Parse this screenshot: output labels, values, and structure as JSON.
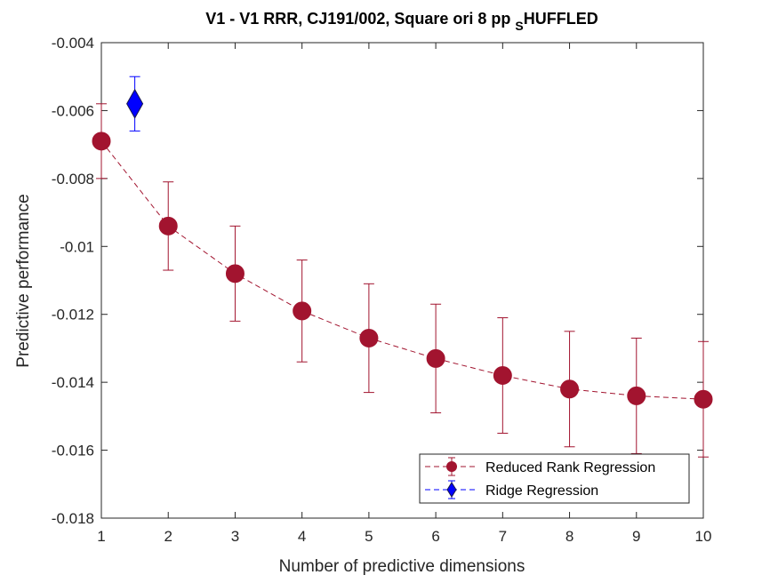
{
  "chart_data": {
    "type": "line",
    "title_main": "V1 - V1 RRR, CJ191/002, Square ori 8 pp ",
    "title_sub": "S",
    "title_tail": "HUFFLED",
    "xlabel": "Number of predictive dimensions",
    "ylabel": "Predictive performance",
    "xlim": [
      1,
      10
    ],
    "ylim": [
      -0.018,
      -0.004
    ],
    "xticks": [
      1,
      2,
      3,
      4,
      5,
      6,
      7,
      8,
      9,
      10
    ],
    "xtick_labels": [
      "1",
      "2",
      "3",
      "4",
      "5",
      "6",
      "7",
      "8",
      "9",
      "10"
    ],
    "yticks": [
      -0.018,
      -0.016,
      -0.014,
      -0.012,
      -0.01,
      -0.008,
      -0.006,
      -0.004
    ],
    "ytick_labels": [
      "-0.018",
      "-0.016",
      "-0.014",
      "-0.012",
      "-0.01",
      "-0.008",
      "-0.006",
      "-0.004"
    ],
    "grid": false,
    "legend_position": "bottom-right",
    "series": [
      {
        "name": "Reduced Rank Regression",
        "color": "#a2142f",
        "marker": "circle",
        "line_style": "dashed",
        "x": [
          1,
          2,
          3,
          4,
          5,
          6,
          7,
          8,
          9,
          10
        ],
        "y": [
          -0.0069,
          -0.0094,
          -0.0108,
          -0.0119,
          -0.0127,
          -0.0133,
          -0.0138,
          -0.0142,
          -0.0144,
          -0.0145
        ],
        "error": [
          0.0011,
          0.0013,
          0.0014,
          0.0015,
          0.0016,
          0.0016,
          0.0017,
          0.0017,
          0.0017,
          0.0017
        ]
      },
      {
        "name": "Ridge Regression",
        "color": "#0000ff",
        "marker": "diamond",
        "line_style": "dashed",
        "x": [
          1.5
        ],
        "y": [
          -0.0058
        ],
        "error": [
          0.0008
        ]
      }
    ]
  }
}
